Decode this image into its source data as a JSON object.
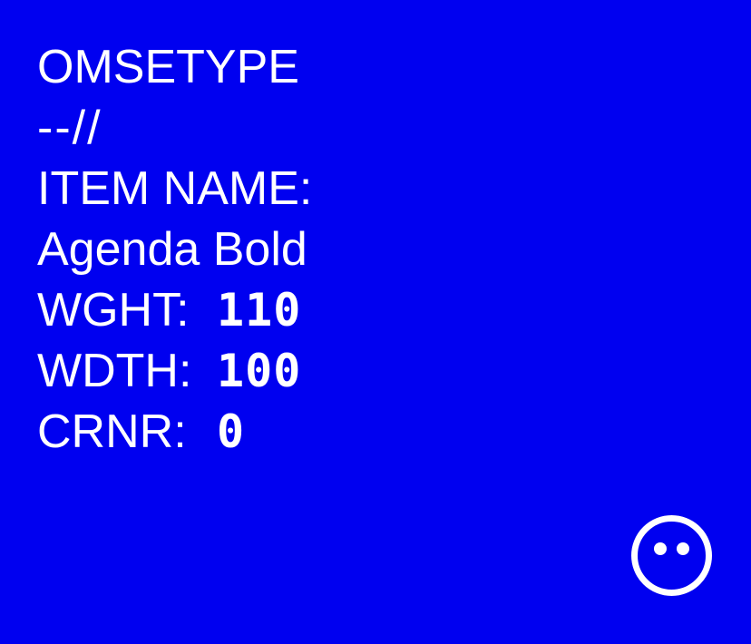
{
  "brand": "OMSETYPE",
  "divider": "--//",
  "item_label": "ITEM NAME:",
  "item_name": "Agenda Bold",
  "params": [
    {
      "label": "WGHT:",
      "value": "110"
    },
    {
      "label": "WDTH:",
      "value": "100"
    },
    {
      "label": "CRNR:",
      "value": "0"
    }
  ],
  "colors": {
    "background": "#0000f0",
    "foreground": "#ffffff"
  },
  "icon": "smiley-face-icon"
}
